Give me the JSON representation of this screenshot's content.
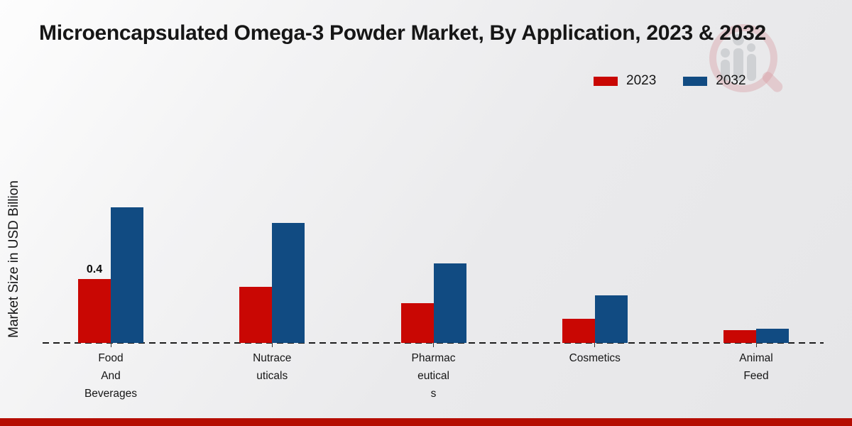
{
  "page": {
    "title": "Microencapsulated Omega-3 Powder Market, By Application, 2023 & 2032"
  },
  "legend": {
    "items": [
      {
        "label": "2023",
        "color": "#c90703"
      },
      {
        "label": "2032",
        "color": "#114b82"
      }
    ]
  },
  "axes": {
    "y_label": "Market Size in USD Billion"
  },
  "chart_data": {
    "type": "bar",
    "title": "Microencapsulated Omega-3 Powder Market, By Application, 2023 & 2032",
    "xlabel": "",
    "ylabel": "Market Size in USD Billion",
    "unit": "USD Billion",
    "categories": [
      "Food And Beverages",
      "Nutraceuticals",
      "Pharmaceuticals",
      "Cosmetics",
      "Animal Feed"
    ],
    "category_labels_wrapped": [
      "Food\nAnd\nBeverages",
      "Nutrace\nuticals",
      "Pharmac\neutical\ns",
      "Cosmetics",
      "Animal\nFeed"
    ],
    "series": [
      {
        "name": "2023",
        "color": "#c90703",
        "values": [
          0.4,
          0.35,
          0.25,
          0.15,
          0.08
        ]
      },
      {
        "name": "2032",
        "color": "#114b82",
        "values": [
          0.85,
          0.75,
          0.5,
          0.3,
          0.09
        ]
      }
    ],
    "data_labels": [
      {
        "series": "2023",
        "category_index": 0,
        "text": "0.4"
      }
    ],
    "ylim": [
      0,
      1.0
    ],
    "grid": false,
    "baseline_style": "dashed",
    "legend_position": "top-right"
  },
  "branding": {
    "bottom_bar_color": "#b50d02",
    "watermark_icon": "magnifying-glass-bar-chart-logo"
  }
}
